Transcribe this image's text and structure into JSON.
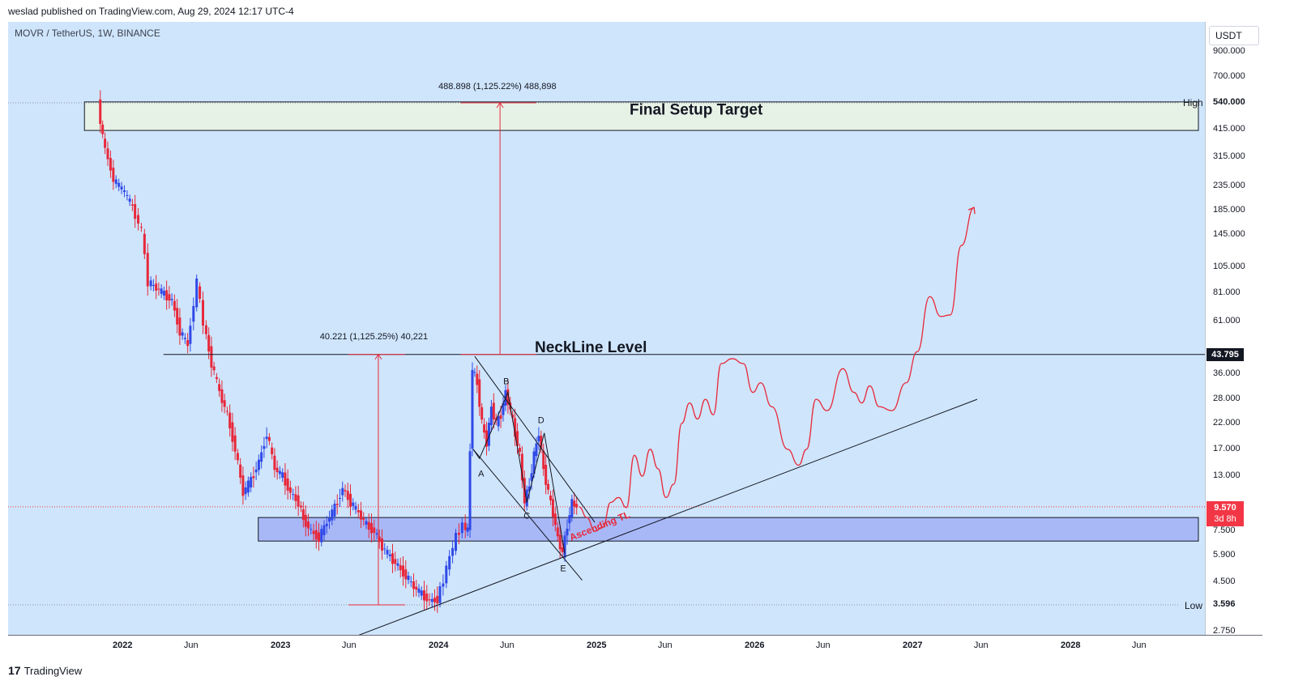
{
  "header": {
    "published_line": "weslad published on TradingView.com, Aug 29, 2024 12:17 UTC-4",
    "symbol_line": "MOVR / TetherUS, 1W, BINANCE"
  },
  "footer": {
    "brand": "TradingView",
    "brand_mark": "17"
  },
  "colors": {
    "background": "#cfe5fb",
    "up_candle": "#2f49e8",
    "down_candle": "#e8283a",
    "target_zone": "#e7f2e7",
    "support_zone": "#a8b8f7",
    "projection": "#e8283a",
    "last_price_tag": "#f23645",
    "level_tag": "#131722"
  },
  "chart_data": {
    "type": "candlestick",
    "title": "MOVR / TetherUS, 1W, BINANCE",
    "y_scale": "log",
    "y_unit": "USDT",
    "ylim": [
      2.5,
      1100
    ],
    "y_ticks": [
      "900.000",
      "700.000",
      "540.000",
      "415.000",
      "315.000",
      "235.000",
      "185.000",
      "145.000",
      "105.000",
      "81.000",
      "61.000",
      "43.795",
      "36.000",
      "28.000",
      "22.000",
      "17.000",
      "13.000",
      "9.570",
      "7.500",
      "5.900",
      "4.500",
      "3.596",
      "2.750"
    ],
    "x_ticks": [
      {
        "label": "2022",
        "year": true,
        "t": 2022.0
      },
      {
        "label": "Jun",
        "year": false,
        "t": 2022.42
      },
      {
        "label": "2023",
        "year": true,
        "t": 2023.0
      },
      {
        "label": "Jun",
        "year": false,
        "t": 2023.42
      },
      {
        "label": "2024",
        "year": true,
        "t": 2024.0
      },
      {
        "label": "Jun",
        "year": false,
        "t": 2024.42
      },
      {
        "label": "2025",
        "year": true,
        "t": 2025.0
      },
      {
        "label": "Jun",
        "year": false,
        "t": 2025.42
      },
      {
        "label": "2026",
        "year": true,
        "t": 2026.0
      },
      {
        "label": "Jun",
        "year": false,
        "t": 2026.42
      },
      {
        "label": "2027",
        "year": true,
        "t": 2027.0
      },
      {
        "label": "Jun",
        "year": false,
        "t": 2027.42
      },
      {
        "label": "2028",
        "year": true,
        "t": 2028.0
      },
      {
        "label": "Jun",
        "year": false,
        "t": 2028.42
      }
    ],
    "high": {
      "label": "High",
      "value": "540.000",
      "v": 540
    },
    "low": {
      "label": "Low",
      "value": "3.596",
      "v": 3.596
    },
    "last_price": {
      "value": "9.570",
      "countdown": "3d 8h",
      "v": 9.57
    },
    "neckline": {
      "value": "43.795",
      "label": "NeckLine Level",
      "v": 43.795
    },
    "annotations": {
      "final_target": "Final Setup Target",
      "measure_top": "488.898 (1,125.22%) 488,898",
      "measure_bottom": "40.221 (1,125.25%) 40,221",
      "ascending_tl": "Ascending TL",
      "wave_labels": [
        "A",
        "B",
        "C",
        "D",
        "E"
      ]
    },
    "zones": [
      {
        "name": "final-target-zone",
        "t0": 2021.75,
        "t1": 2028.8,
        "low": 410,
        "high": 545
      },
      {
        "name": "support-zone",
        "t0": 2022.85,
        "t1": 2028.8,
        "low": 6.8,
        "high": 8.6
      }
    ],
    "price_path": [
      [
        2021.85,
        540
      ],
      [
        2021.88,
        380
      ],
      [
        2021.95,
        250
      ],
      [
        2022.02,
        220
      ],
      [
        2022.07,
        190
      ],
      [
        2022.13,
        150
      ],
      [
        2022.17,
        90
      ],
      [
        2022.22,
        85
      ],
      [
        2022.27,
        80
      ],
      [
        2022.32,
        75
      ],
      [
        2022.37,
        55
      ],
      [
        2022.42,
        48
      ],
      [
        2022.48,
        90
      ],
      [
        2022.52,
        60
      ],
      [
        2022.57,
        40
      ],
      [
        2022.62,
        30
      ],
      [
        2022.67,
        24
      ],
      [
        2022.72,
        17
      ],
      [
        2022.77,
        11
      ],
      [
        2022.82,
        12.5
      ],
      [
        2022.87,
        15
      ],
      [
        2022.92,
        20
      ],
      [
        2022.97,
        14
      ],
      [
        2023.02,
        13
      ],
      [
        2023.07,
        11
      ],
      [
        2023.12,
        10
      ],
      [
        2023.15,
        8.5
      ],
      [
        2023.2,
        7.5
      ],
      [
        2023.25,
        7
      ],
      [
        2023.3,
        8.2
      ],
      [
        2023.35,
        9.5
      ],
      [
        2023.4,
        11.5
      ],
      [
        2023.45,
        10
      ],
      [
        2023.5,
        9
      ],
      [
        2023.55,
        8
      ],
      [
        2023.6,
        7.5
      ],
      [
        2023.65,
        6.4
      ],
      [
        2023.7,
        5.8
      ],
      [
        2023.75,
        5.3
      ],
      [
        2023.8,
        4.8
      ],
      [
        2023.85,
        4.3
      ],
      [
        2023.9,
        4.0
      ],
      [
        2023.95,
        3.75
      ],
      [
        2024.0,
        3.8
      ],
      [
        2024.04,
        4.6
      ],
      [
        2024.08,
        5.8
      ],
      [
        2024.12,
        7.1
      ],
      [
        2024.16,
        8.0
      ],
      [
        2024.19,
        7.5
      ],
      [
        2024.22,
        38
      ],
      [
        2024.25,
        33
      ],
      [
        2024.28,
        22
      ],
      [
        2024.31,
        18
      ],
      [
        2024.34,
        26
      ],
      [
        2024.37,
        22
      ],
      [
        2024.4,
        24
      ],
      [
        2024.43,
        30
      ],
      [
        2024.46,
        25
      ],
      [
        2024.49,
        20
      ],
      [
        2024.52,
        16
      ],
      [
        2024.55,
        10
      ],
      [
        2024.58,
        12
      ],
      [
        2024.61,
        16
      ],
      [
        2024.64,
        20
      ],
      [
        2024.67,
        14
      ],
      [
        2024.7,
        11
      ],
      [
        2024.73,
        9
      ],
      [
        2024.76,
        7
      ],
      [
        2024.79,
        6.0
      ],
      [
        2024.82,
        8
      ],
      [
        2024.85,
        10
      ],
      [
        2024.88,
        9.57
      ]
    ],
    "projection_path": [
      [
        2024.88,
        9.57
      ],
      [
        2024.93,
        8.6
      ],
      [
        2024.98,
        7.5
      ],
      [
        2025.03,
        7.8
      ],
      [
        2025.08,
        10
      ],
      [
        2025.13,
        10.5
      ],
      [
        2025.18,
        9.5
      ],
      [
        2025.23,
        16
      ],
      [
        2025.28,
        13
      ],
      [
        2025.33,
        17
      ],
      [
        2025.38,
        14
      ],
      [
        2025.43,
        10.5
      ],
      [
        2025.48,
        12
      ],
      [
        2025.53,
        22
      ],
      [
        2025.58,
        27
      ],
      [
        2025.63,
        23
      ],
      [
        2025.68,
        28
      ],
      [
        2025.73,
        24
      ],
      [
        2025.78,
        40
      ],
      [
        2025.85,
        42
      ],
      [
        2025.92,
        40
      ],
      [
        2025.98,
        30
      ],
      [
        2026.03,
        33
      ],
      [
        2026.1,
        26
      ],
      [
        2026.2,
        17
      ],
      [
        2026.27,
        14.5
      ],
      [
        2026.32,
        17
      ],
      [
        2026.38,
        28
      ],
      [
        2026.45,
        25
      ],
      [
        2026.55,
        38
      ],
      [
        2026.62,
        30
      ],
      [
        2026.67,
        27
      ],
      [
        2026.72,
        32
      ],
      [
        2026.78,
        26
      ],
      [
        2026.86,
        25
      ],
      [
        2026.95,
        33
      ],
      [
        2027.02,
        45
      ],
      [
        2027.1,
        78
      ],
      [
        2027.17,
        64
      ],
      [
        2027.23,
        65
      ],
      [
        2027.3,
        130
      ],
      [
        2027.38,
        190
      ]
    ],
    "trendlines": [
      {
        "name": "ascending-trendline",
        "t0": 2023.45,
        "v0": 2.6,
        "t1": 2027.4,
        "v1": 28
      },
      {
        "name": "channel-upper-line",
        "t0": 2024.22,
        "v0": 43,
        "t1": 2024.98,
        "v1": 8.2
      },
      {
        "name": "channel-lower-line",
        "t0": 2024.21,
        "v0": 17,
        "t1": 2024.9,
        "v1": 4.6
      }
    ],
    "wave_points": [
      {
        "label": "A",
        "t": 2024.25,
        "v": 15.5
      },
      {
        "label": "B",
        "t": 2024.43,
        "v": 30
      },
      {
        "label": "C",
        "t": 2024.55,
        "v": 10
      },
      {
        "label": "D",
        "t": 2024.66,
        "v": 20
      },
      {
        "label": "E",
        "t": 2024.79,
        "v": 6.0
      }
    ]
  }
}
